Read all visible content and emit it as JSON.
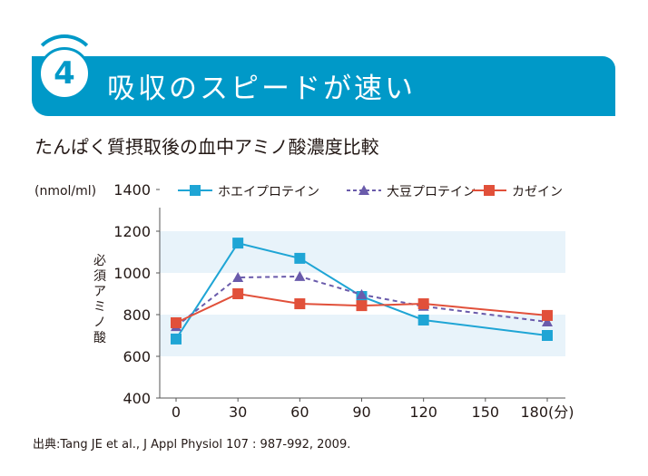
{
  "header": {
    "number": "4",
    "title": "吸収のスピードが速い",
    "subtitle": "たんぱく質摂取後の血中アミノ酸濃度比較"
  },
  "source": "出典:Tang JE et al., J Appl Physiol 107 : 987-992, 2009.",
  "chart_data": {
    "type": "line",
    "title": "たんぱく質摂取後の血中アミノ酸濃度比較",
    "ylabel": "必須アミノ酸",
    "yunit": "(nmol/ml)",
    "xunit": "(分)",
    "x": [
      0,
      30,
      60,
      90,
      120,
      180
    ],
    "xticks": [
      0,
      30,
      60,
      90,
      120,
      150,
      180
    ],
    "yticks": [
      400,
      600,
      800,
      1000,
      1200,
      1400
    ],
    "ylim": [
      400,
      1400
    ],
    "xlim": [
      0,
      190
    ],
    "bands": [
      [
        600,
        800
      ],
      [
        1000,
        1200
      ]
    ],
    "legend_position": "top",
    "series": [
      {
        "name": "ホエイプロテイン",
        "values": [
          683,
          1143,
          1070,
          887,
          774,
          700
        ],
        "color": "#1fa5d5",
        "marker": "square",
        "dash": false
      },
      {
        "name": "大豆プロテイン",
        "values": [
          743,
          978,
          983,
          896,
          840,
          765
        ],
        "color": "#6a5bab",
        "marker": "triangle",
        "dash": true
      },
      {
        "name": "カゼイン",
        "values": [
          761,
          900,
          852,
          843,
          852,
          796
        ],
        "color": "#e1503a",
        "marker": "square",
        "dash": false
      }
    ]
  },
  "colors": {
    "banner": "#0099c8",
    "band": "#e8f3fa"
  }
}
